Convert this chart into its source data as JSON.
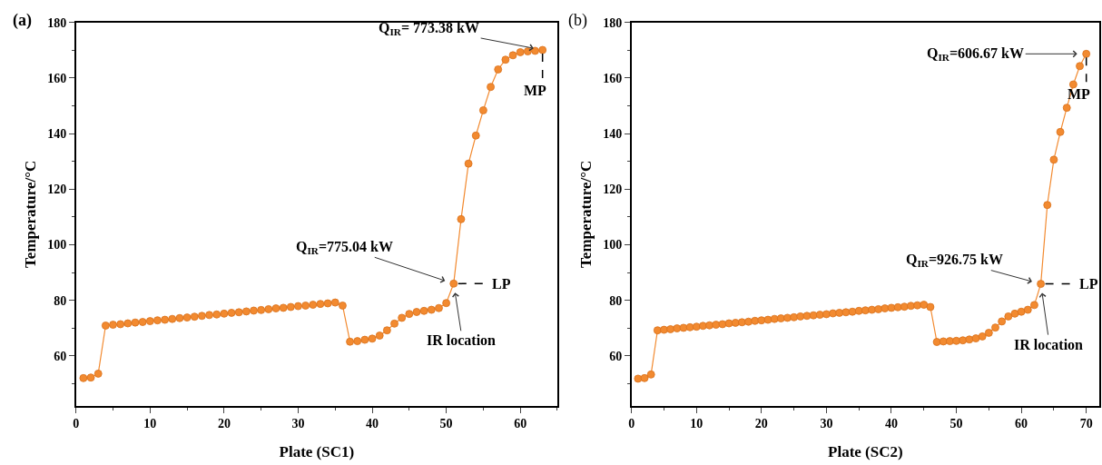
{
  "chart_data": [
    {
      "type": "line",
      "title": "(a)",
      "xlabel": "Plate (SC1)",
      "ylabel": "Temperature/°C",
      "xlim": [
        0,
        65
      ],
      "xticks": [
        0,
        10,
        20,
        30,
        40,
        50,
        60
      ],
      "ylim": [
        42,
        180
      ],
      "yticks": [
        60,
        80,
        100,
        120,
        140,
        160,
        180
      ],
      "marker": "circle",
      "line_style": "solid",
      "series": [
        {
          "color": "#f28a30",
          "x": [
            1,
            2,
            3,
            4,
            5,
            6,
            7,
            8,
            9,
            10,
            11,
            12,
            13,
            14,
            15,
            16,
            17,
            18,
            19,
            20,
            21,
            22,
            23,
            24,
            25,
            26,
            27,
            28,
            29,
            30,
            31,
            32,
            33,
            34,
            35,
            36,
            37,
            38,
            39,
            40,
            41,
            42,
            43,
            44,
            45,
            46,
            47,
            48,
            49,
            50,
            51,
            52,
            53,
            54,
            55,
            56,
            57,
            58,
            59,
            60,
            61,
            62,
            63
          ],
          "values": [
            52.0,
            52.2,
            53.6,
            70.9,
            71.2,
            71.4,
            71.7,
            72.0,
            72.2,
            72.5,
            72.8,
            73.0,
            73.3,
            73.6,
            73.8,
            74.1,
            74.4,
            74.7,
            74.9,
            75.2,
            75.5,
            75.7,
            76.0,
            76.3,
            76.5,
            76.8,
            77.1,
            77.3,
            77.6,
            77.9,
            78.1,
            78.4,
            78.7,
            78.9,
            79.2,
            78.1,
            65.1,
            65.3,
            65.8,
            66.2,
            67.3,
            69.2,
            71.6,
            73.7,
            75.1,
            75.8,
            76.2,
            76.6,
            77.2,
            79.0,
            86.0,
            109.2,
            129.2,
            139.3,
            148.4,
            156.8,
            163.1,
            166.6,
            168.2,
            169.3,
            169.6,
            169.8,
            170.1
          ]
        }
      ],
      "annotations": [
        {
          "text": "Q$_{IR}$= 773.38 kW",
          "x": 63,
          "y": 170.1
        },
        {
          "text": "MP",
          "x": 63,
          "y": 170.1
        },
        {
          "text": "Q$_{IR}$=775.04 kW",
          "x": 51,
          "y": 86.0
        },
        {
          "text": "LP",
          "x": 51,
          "y": 86.0
        },
        {
          "text": "IR location",
          "x": 51,
          "y": 86.0
        }
      ]
    },
    {
      "type": "line",
      "title": "(b)",
      "xlabel": "Plate (SC2)",
      "ylabel": "Temperature/°C",
      "xlim": [
        0,
        72
      ],
      "xticks": [
        0,
        10,
        20,
        30,
        40,
        50,
        60,
        70
      ],
      "ylim": [
        42,
        180
      ],
      "yticks": [
        60,
        80,
        100,
        120,
        140,
        160,
        180
      ],
      "marker": "circle",
      "line_style": "solid",
      "series": [
        {
          "color": "#f28a30",
          "x": [
            1,
            2,
            3,
            4,
            5,
            6,
            7,
            8,
            9,
            10,
            11,
            12,
            13,
            14,
            15,
            16,
            17,
            18,
            19,
            20,
            21,
            22,
            23,
            24,
            25,
            26,
            27,
            28,
            29,
            30,
            31,
            32,
            33,
            34,
            35,
            36,
            37,
            38,
            39,
            40,
            41,
            42,
            43,
            44,
            45,
            46,
            47,
            48,
            49,
            50,
            51,
            52,
            53,
            54,
            55,
            56,
            57,
            58,
            59,
            60,
            61,
            62,
            63,
            64,
            65,
            66,
            67,
            68,
            69,
            70
          ],
          "values": [
            51.8,
            52.0,
            53.3,
            69.2,
            69.4,
            69.6,
            69.9,
            70.1,
            70.3,
            70.5,
            70.8,
            71.0,
            71.2,
            71.4,
            71.7,
            71.9,
            72.1,
            72.3,
            72.6,
            72.8,
            73.0,
            73.3,
            73.5,
            73.7,
            73.9,
            74.2,
            74.4,
            74.6,
            74.8,
            75.0,
            75.3,
            75.5,
            75.7,
            75.9,
            76.2,
            76.4,
            76.6,
            76.8,
            77.1,
            77.3,
            77.5,
            77.7,
            78.0,
            78.2,
            78.4,
            77.6,
            65.0,
            65.2,
            65.3,
            65.4,
            65.6,
            65.9,
            66.3,
            67.0,
            68.3,
            70.2,
            72.4,
            74.2,
            75.2,
            75.9,
            76.6,
            78.3,
            85.9,
            114.3,
            130.6,
            140.6,
            149.3,
            157.7,
            164.3,
            168.7
          ]
        }
      ],
      "annotations": [
        {
          "text": "Q$_{IR}$=606.67 kW",
          "x": 70,
          "y": 168.7
        },
        {
          "text": "MP",
          "x": 70,
          "y": 168.7
        },
        {
          "text": "Q$_{IR}$=926.75 kW",
          "x": 63,
          "y": 85.9
        },
        {
          "text": "LP",
          "x": 63,
          "y": 85.9
        },
        {
          "text": "IR location",
          "x": 63,
          "y": 85.9
        }
      ]
    }
  ]
}
